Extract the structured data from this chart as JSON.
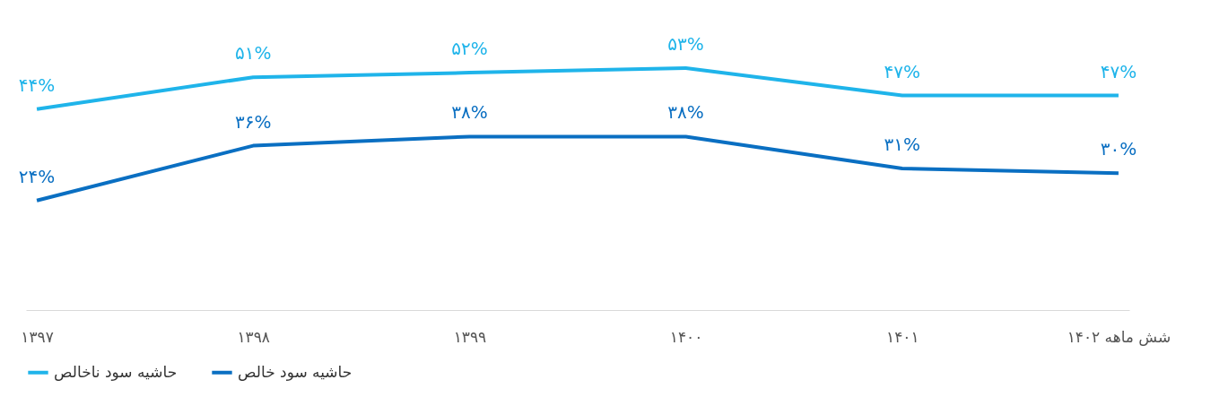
{
  "chart_data": {
    "type": "line",
    "categories": [
      "۱۳۹۷",
      "۱۳۹۸",
      "۱۳۹۹",
      "۱۴۰۰",
      "۱۴۰۱",
      "شش ماهه ۱۴۰۲"
    ],
    "series": [
      {
        "name": "حاشیه سود ناخالص",
        "color": "#1fb4ea",
        "values": [
          44,
          51,
          52,
          53,
          47,
          47
        ],
        "value_labels": [
          "۴۴%",
          "۵۱%",
          "۵۲%",
          "۵۳%",
          "۴۷%",
          "۴۷%"
        ]
      },
      {
        "name": "حاشیه سود خالص",
        "color": "#0a6fc2",
        "values": [
          24,
          36,
          38,
          38,
          31,
          30
        ],
        "value_labels": [
          "۲۴%",
          "۳۶%",
          "۳۸%",
          "۳۸%",
          "۳۱%",
          "۳۰%"
        ]
      }
    ],
    "tick_labels": "x",
    "grid": false,
    "legend": "bottom",
    "marker": "none",
    "line_style": "solid"
  }
}
